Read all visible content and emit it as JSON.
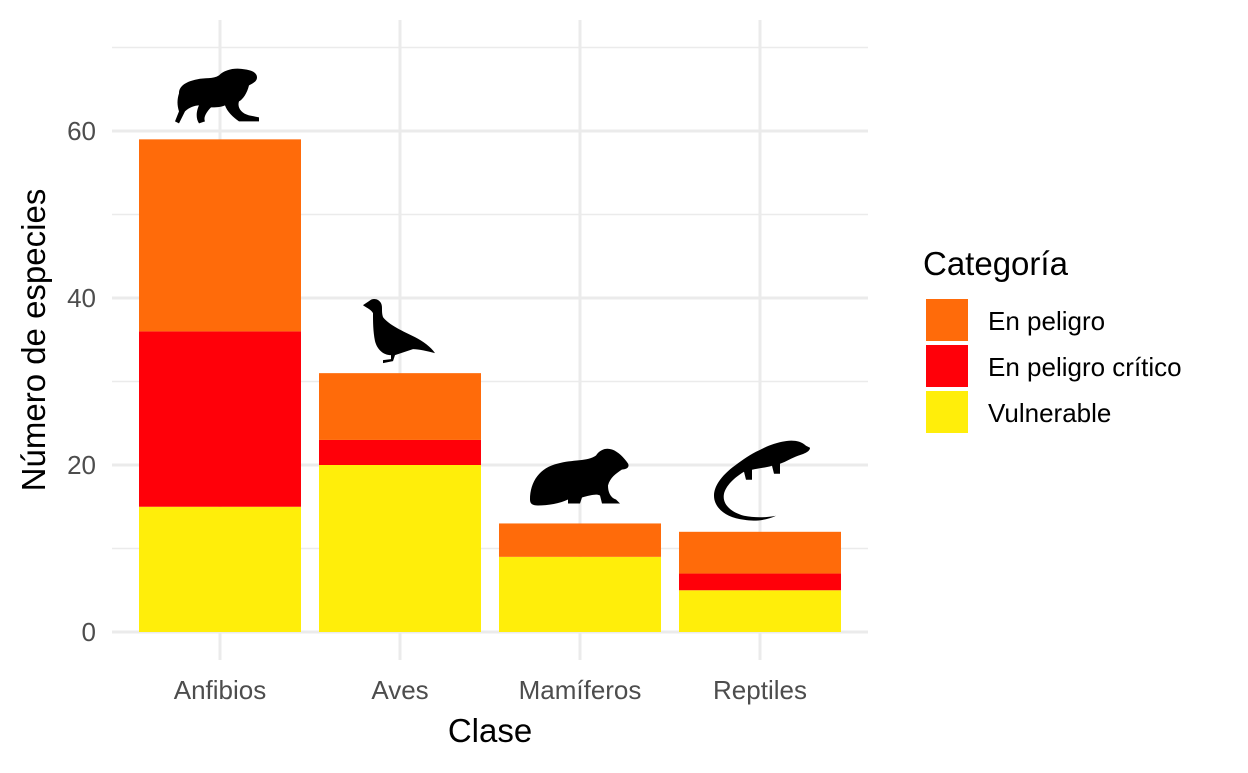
{
  "chart_data": {
    "type": "bar",
    "stacked": true,
    "categories": [
      "Anfibios",
      "Aves",
      "Mamíferos",
      "Reptiles"
    ],
    "series": [
      {
        "name": "Vulnerable",
        "color": "#FFEE0A",
        "values": [
          15,
          20,
          9,
          5
        ]
      },
      {
        "name": "En peligro crítico",
        "color": "#FF0009",
        "values": [
          21,
          3,
          0,
          2
        ]
      },
      {
        "name": "En peligro",
        "color": "#FF6B0A",
        "values": [
          23,
          8,
          4,
          5
        ]
      }
    ],
    "category_icons": [
      "frog-icon",
      "bird-icon",
      "rodent-icon",
      "iguana-icon"
    ],
    "xlabel": "Clase",
    "ylabel": "Número de especies",
    "ylim": [
      0,
      70
    ],
    "y_ticks": [
      0,
      20,
      40,
      60
    ],
    "y_tick_labels": [
      "0",
      "20",
      "40",
      "60"
    ],
    "grid": true,
    "legend": {
      "title": "Categoría",
      "position": "right",
      "entries": [
        "En peligro",
        "En peligro crítico",
        "Vulnerable"
      ]
    }
  }
}
